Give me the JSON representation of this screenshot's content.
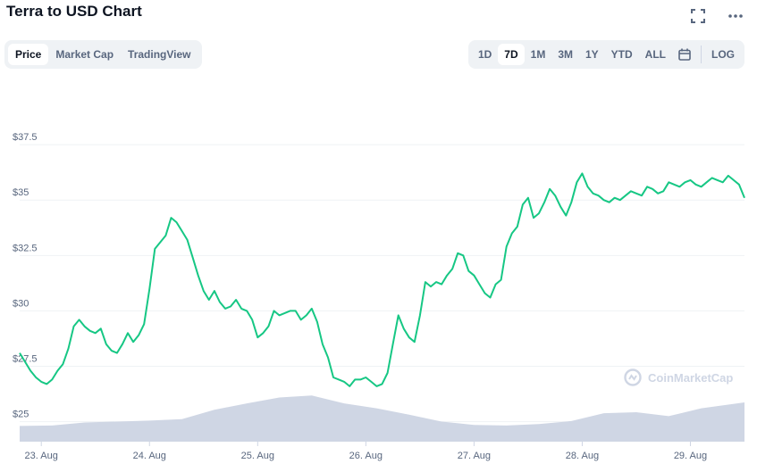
{
  "header": {
    "title": "Terra to USD Chart"
  },
  "icons": {
    "fullscreen": "fullscreen-icon",
    "more": "more-icon",
    "calendar": "calendar-icon"
  },
  "tabs": [
    {
      "label": "Price",
      "active": true
    },
    {
      "label": "Market Cap",
      "active": false
    },
    {
      "label": "TradingView",
      "active": false
    }
  ],
  "ranges": [
    {
      "label": "1D",
      "active": false
    },
    {
      "label": "7D",
      "active": true
    },
    {
      "label": "1M",
      "active": false
    },
    {
      "label": "3M",
      "active": false
    },
    {
      "label": "1Y",
      "active": false
    },
    {
      "label": "YTD",
      "active": false
    },
    {
      "label": "ALL",
      "active": false
    }
  ],
  "log_label": "LOG",
  "watermark": "CoinMarketCap",
  "colors": {
    "line": "#16c784",
    "volume": "#cfd6e4",
    "grid": "#eff2f5",
    "axis_text": "#58667e"
  },
  "chart_data": {
    "type": "line",
    "title": "Terra to USD Chart",
    "xlabel": "",
    "ylabel": "",
    "y_tick_labels": [
      "$25",
      "$27.5",
      "$30",
      "$32.5",
      "$35",
      "$37.5"
    ],
    "y_ticks": [
      25,
      27.5,
      30,
      32.5,
      35,
      37.5
    ],
    "ylim": [
      24.1,
      40
    ],
    "x_tick_labels": [
      "23. Aug",
      "24. Aug",
      "25. Aug",
      "26. Aug",
      "27. Aug",
      "28. Aug",
      "29. Aug"
    ],
    "x_ticks": [
      0.5,
      1.5,
      2.5,
      3.5,
      4.5,
      5.5,
      6.5
    ],
    "xlim": [
      0.3,
      7.0
    ],
    "grid": true,
    "series": [
      {
        "x": [
          0.3,
          0.35,
          0.4,
          0.45,
          0.5,
          0.55,
          0.6,
          0.65,
          0.7,
          0.75,
          0.8,
          0.85,
          0.9,
          0.95,
          1.0,
          1.05,
          1.1,
          1.15,
          1.2,
          1.25,
          1.3,
          1.35,
          1.4,
          1.45,
          1.5,
          1.55,
          1.6,
          1.65,
          1.7,
          1.75,
          1.8,
          1.85,
          1.9,
          1.95,
          2.0,
          2.05,
          2.1,
          2.15,
          2.2,
          2.25,
          2.3,
          2.35,
          2.4,
          2.45,
          2.5,
          2.55,
          2.6,
          2.65,
          2.7,
          2.75,
          2.8,
          2.85,
          2.9,
          2.95,
          3.0,
          3.05,
          3.1,
          3.15,
          3.2,
          3.25,
          3.3,
          3.35,
          3.4,
          3.45,
          3.5,
          3.55,
          3.6,
          3.65,
          3.7,
          3.75,
          3.8,
          3.85,
          3.9,
          3.95,
          4.0,
          4.05,
          4.1,
          4.15,
          4.2,
          4.25,
          4.3,
          4.35,
          4.4,
          4.45,
          4.5,
          4.55,
          4.6,
          4.65,
          4.7,
          4.75,
          4.8,
          4.85,
          4.9,
          4.95,
          5.0,
          5.05,
          5.1,
          5.15,
          5.2,
          5.25,
          5.3,
          5.35,
          5.4,
          5.45,
          5.5,
          5.55,
          5.6,
          5.65,
          5.7,
          5.75,
          5.8,
          5.85,
          5.9,
          5.95,
          6.0,
          6.05,
          6.1,
          6.15,
          6.2,
          6.25,
          6.3,
          6.35,
          6.4,
          6.45,
          6.5,
          6.55,
          6.6,
          6.65,
          6.7,
          6.75,
          6.8,
          6.85,
          6.9,
          6.95,
          7.0
        ],
        "values": [
          28.1,
          27.7,
          27.3,
          27.0,
          26.8,
          26.7,
          26.9,
          27.3,
          27.6,
          28.3,
          29.3,
          29.6,
          29.3,
          29.1,
          29.0,
          29.2,
          28.5,
          28.2,
          28.1,
          28.5,
          29.0,
          28.6,
          28.9,
          29.4,
          31.0,
          32.8,
          33.1,
          33.4,
          34.2,
          34.0,
          33.6,
          33.2,
          32.4,
          31.6,
          30.9,
          30.5,
          30.9,
          30.4,
          30.1,
          30.2,
          30.5,
          30.1,
          30.0,
          29.6,
          28.8,
          29.0,
          29.3,
          30.0,
          29.8,
          29.9,
          30.0,
          30.0,
          29.6,
          29.8,
          30.1,
          29.5,
          28.5,
          27.9,
          27.0,
          26.9,
          26.8,
          26.6,
          26.9,
          26.9,
          27.0,
          26.8,
          26.6,
          26.7,
          27.2,
          28.5,
          29.8,
          29.2,
          28.8,
          28.6,
          29.8,
          31.3,
          31.1,
          31.3,
          31.2,
          31.6,
          31.9,
          32.6,
          32.5,
          31.8,
          31.6,
          31.2,
          30.8,
          30.6,
          31.2,
          31.4,
          32.9,
          33.5,
          33.8,
          34.8,
          35.1,
          34.2,
          34.4,
          34.9,
          35.5,
          35.2,
          34.7,
          34.3,
          34.9,
          35.8,
          36.2,
          35.6,
          35.3,
          35.2,
          35.0,
          34.9,
          35.1,
          35.0,
          35.2,
          35.4,
          35.3,
          35.2,
          35.6,
          35.5,
          35.3,
          35.4,
          35.8,
          35.7,
          35.6,
          35.8,
          35.9,
          35.7,
          35.6,
          35.8,
          36.0,
          35.9,
          35.8,
          36.1,
          35.9,
          35.7,
          35.1
        ]
      }
    ],
    "volume": {
      "x": [
        0.3,
        0.6,
        0.9,
        1.2,
        1.5,
        1.8,
        2.1,
        2.4,
        2.7,
        3.0,
        3.3,
        3.6,
        3.9,
        4.2,
        4.5,
        4.8,
        5.1,
        5.4,
        5.7,
        6.0,
        6.3,
        6.6,
        7.0
      ],
      "values": [
        0.32,
        0.33,
        0.39,
        0.41,
        0.43,
        0.46,
        0.65,
        0.78,
        0.9,
        0.94,
        0.78,
        0.68,
        0.55,
        0.41,
        0.34,
        0.33,
        0.36,
        0.42,
        0.58,
        0.6,
        0.52,
        0.68,
        0.8
      ]
    }
  }
}
